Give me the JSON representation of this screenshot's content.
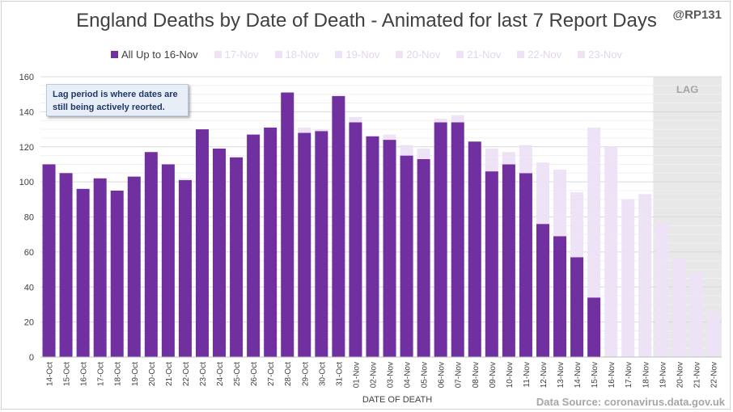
{
  "title": "England Deaths by Date of Death - Animated for last 7 Report Days",
  "handle": "@RP131",
  "annotation": "Lag period is where dates are still being actively reorted.",
  "source": "Data Source: coronavirus.data.gov.uk",
  "lag_label": "LAG",
  "colors": {
    "all": "#7030a0",
    "later": "#ede2f6",
    "lag_band": "#e8e8e8",
    "grid": "#d9d9d9"
  },
  "chart_data": {
    "type": "bar",
    "stacked": true,
    "xlabel": "DATE OF DEATH",
    "ylabel": "",
    "ylim": [
      0,
      160
    ],
    "yticks": [
      0,
      20,
      40,
      60,
      80,
      100,
      120,
      140,
      160
    ],
    "grid": true,
    "legend_position": "top",
    "lag_start": "19-Nov",
    "categories": [
      "14-Oct",
      "15-Oct",
      "16-Oct",
      "17-Oct",
      "18-Oct",
      "19-Oct",
      "20-Oct",
      "21-Oct",
      "22-Oct",
      "23-Oct",
      "24-Oct",
      "25-Oct",
      "26-Oct",
      "27-Oct",
      "28-Oct",
      "29-Oct",
      "30-Oct",
      "31-Oct",
      "01-Nov",
      "02-Nov",
      "03-Nov",
      "04-Nov",
      "05-Nov",
      "06-Nov",
      "07-Nov",
      "08-Nov",
      "09-Nov",
      "10-Nov",
      "11-Nov",
      "12-Nov",
      "13-Nov",
      "14-Nov",
      "15-Nov",
      "16-Nov",
      "17-Nov",
      "18-Nov",
      "19-Nov",
      "20-Nov",
      "21-Nov",
      "22-Nov"
    ],
    "series": [
      {
        "name": "All Up to 16-Nov",
        "values": [
          110,
          105,
          96,
          102,
          95,
          103,
          117,
          110,
          101,
          130,
          119,
          114,
          127,
          131,
          151,
          128,
          129,
          149,
          134,
          126,
          124,
          115,
          113,
          134,
          134,
          123,
          106,
          110,
          105,
          76,
          69,
          57,
          34,
          0,
          0,
          0,
          0,
          0,
          0,
          0
        ]
      },
      {
        "name": "17-Nov",
        "values": [
          0,
          0,
          0,
          0,
          0,
          0,
          0,
          0,
          1,
          0,
          0,
          0,
          0,
          0,
          0,
          2,
          1,
          0,
          2,
          0,
          1,
          2,
          2,
          1,
          2,
          0,
          5,
          2,
          5,
          12,
          12,
          13,
          23,
          40,
          0,
          0,
          0,
          0,
          0,
          0
        ]
      },
      {
        "name": "18-Nov",
        "values": [
          0,
          0,
          0,
          0,
          0,
          0,
          0,
          0,
          0,
          0,
          0,
          0,
          0,
          0,
          0,
          1,
          0,
          0,
          1,
          0,
          1,
          1,
          2,
          1,
          1,
          0,
          3,
          2,
          4,
          8,
          9,
          8,
          22,
          30,
          35,
          0,
          0,
          0,
          0,
          0
        ]
      },
      {
        "name": "19-Nov",
        "values": [
          0,
          0,
          0,
          0,
          0,
          0,
          0,
          0,
          0,
          0,
          0,
          0,
          0,
          0,
          0,
          0,
          0,
          0,
          0,
          0,
          1,
          1,
          1,
          0,
          1,
          0,
          2,
          1,
          3,
          5,
          6,
          6,
          18,
          20,
          25,
          40,
          0,
          0,
          0,
          0
        ]
      },
      {
        "name": "20-Nov",
        "values": [
          0,
          0,
          0,
          0,
          0,
          0,
          0,
          0,
          0,
          0,
          0,
          0,
          0,
          0,
          0,
          0,
          0,
          0,
          0,
          0,
          0,
          1,
          1,
          0,
          0,
          0,
          1,
          1,
          2,
          4,
          5,
          4,
          14,
          14,
          15,
          25,
          33,
          0,
          0,
          0
        ]
      },
      {
        "name": "21-Nov",
        "values": [
          0,
          0,
          0,
          0,
          0,
          0,
          0,
          0,
          0,
          0,
          0,
          0,
          0,
          0,
          0,
          0,
          0,
          0,
          0,
          0,
          0,
          1,
          0,
          0,
          0,
          0,
          1,
          1,
          1,
          3,
          3,
          3,
          10,
          8,
          8,
          14,
          22,
          28,
          0,
          0
        ]
      },
      {
        "name": "22-Nov",
        "values": [
          0,
          0,
          0,
          0,
          0,
          0,
          0,
          0,
          0,
          0,
          0,
          0,
          0,
          0,
          0,
          0,
          0,
          0,
          0,
          0,
          0,
          0,
          0,
          0,
          0,
          0,
          1,
          0,
          1,
          2,
          2,
          2,
          6,
          5,
          5,
          10,
          14,
          18,
          35,
          0
        ]
      },
      {
        "name": "23-Nov",
        "values": [
          0,
          0,
          0,
          0,
          0,
          0,
          0,
          0,
          0,
          0,
          0,
          0,
          0,
          0,
          0,
          0,
          0,
          0,
          0,
          0,
          0,
          0,
          0,
          0,
          0,
          0,
          0,
          0,
          0,
          1,
          1,
          1,
          4,
          3,
          2,
          4,
          8,
          10,
          13,
          26
        ]
      }
    ]
  }
}
